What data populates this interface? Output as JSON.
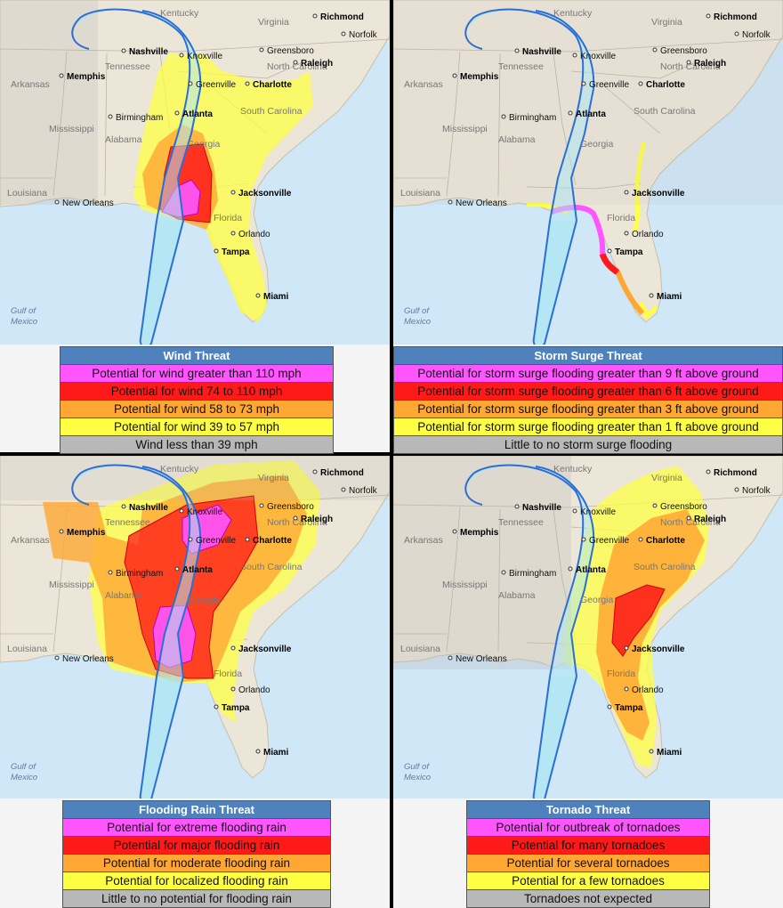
{
  "map_labels": {
    "states": [
      "Kentucky",
      "Virginia",
      "Tennessee",
      "North Carolina",
      "Arkansas",
      "South Carolina",
      "Mississippi",
      "Alabama",
      "Georgia",
      "Louisiana",
      "Florida"
    ],
    "cities": [
      "Richmond",
      "Norfolk",
      "Nashville",
      "Knoxville",
      "Greensboro",
      "Raleigh",
      "Memphis",
      "Charlotte",
      "Greenville",
      "Birmingham",
      "Atlanta",
      "Jacksonville",
      "New Orleans",
      "Orlando",
      "Tampa",
      "Miami"
    ],
    "gulf": "Gulf of\nMexico"
  },
  "panels": [
    {
      "id": "wind",
      "title": "Wind Threat",
      "items": [
        {
          "label": "Potential for wind greater than 110 mph",
          "color": "#ff55ff"
        },
        {
          "label": "Potential for wind 74 to 110 mph",
          "color": "#ff1a1a"
        },
        {
          "label": "Potential for wind 58 to 73 mph",
          "color": "#ffa733"
        },
        {
          "label": "Potential for wind 39 to 57 mph",
          "color": "#ffff44"
        },
        {
          "label": "Wind less than 39 mph",
          "color": "#b8b8b8"
        }
      ]
    },
    {
      "id": "storm-surge",
      "title": "Storm Surge Threat",
      "items": [
        {
          "label": "Potential for storm surge flooding greater than 9 ft above ground",
          "color": "#ff55ff"
        },
        {
          "label": "Potential for storm surge flooding greater than 6 ft above ground",
          "color": "#ff1a1a"
        },
        {
          "label": "Potential for storm surge flooding greater than 3 ft above ground",
          "color": "#ffa733"
        },
        {
          "label": "Potential for storm surge flooding greater than 1 ft above ground",
          "color": "#ffff44"
        },
        {
          "label": "Little to no storm surge flooding",
          "color": "#b8b8b8"
        }
      ]
    },
    {
      "id": "flooding-rain",
      "title": "Flooding Rain Threat",
      "items": [
        {
          "label": "Potential for extreme flooding rain",
          "color": "#ff55ff"
        },
        {
          "label": "Potential for major flooding rain",
          "color": "#ff1a1a"
        },
        {
          "label": "Potential for moderate flooding rain",
          "color": "#ffa733"
        },
        {
          "label": "Potential for localized flooding rain",
          "color": "#ffff44"
        },
        {
          "label": "Little to no potential for flooding rain",
          "color": "#b8b8b8"
        }
      ]
    },
    {
      "id": "tornado",
      "title": "Tornado Threat",
      "items": [
        {
          "label": "Potential for outbreak of tornadoes",
          "color": "#ff55ff"
        },
        {
          "label": "Potential for many  tornadoes",
          "color": "#ff1a1a"
        },
        {
          "label": "Potential for several tornadoes",
          "color": "#ffa733"
        },
        {
          "label": "Potential for a few tornadoes",
          "color": "#ffff44"
        },
        {
          "label": "Tornadoes not expected",
          "color": "#b8b8b8"
        }
      ]
    }
  ],
  "colors": {
    "header": "#4f81bd",
    "cone_outline": "#2a6fd6",
    "cone_fill": "#aee6f2",
    "ocean": "#cfe7f7",
    "land": "#ece6d8"
  }
}
